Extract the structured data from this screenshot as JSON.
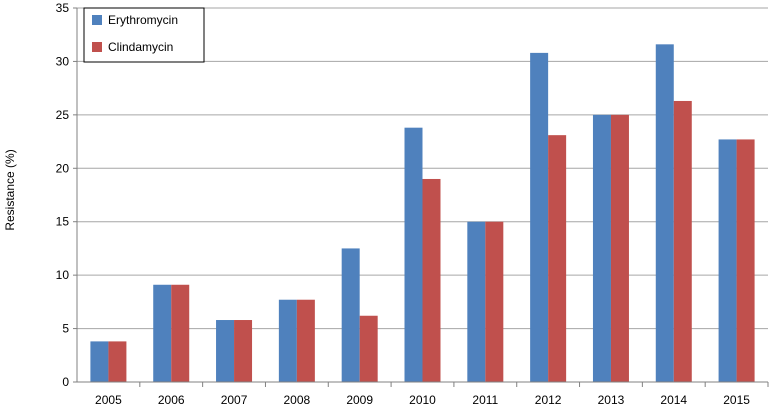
{
  "chart_data": {
    "type": "bar",
    "title": "",
    "xlabel": "",
    "ylabel": "Resistance (%)",
    "categories": [
      "2005",
      "2006",
      "2007",
      "2008",
      "2009",
      "2010",
      "2011",
      "2012",
      "2013",
      "2014",
      "2015"
    ],
    "series": [
      {
        "name": "Erythromycin",
        "color": "#4F81BD",
        "values": [
          3.8,
          9.1,
          5.8,
          7.7,
          12.5,
          23.8,
          15.0,
          30.8,
          25.0,
          31.6,
          22.7
        ]
      },
      {
        "name": "Clindamycin",
        "color": "#C0504D",
        "values": [
          3.8,
          9.1,
          5.8,
          7.7,
          6.2,
          19.0,
          15.0,
          23.1,
          25.0,
          26.3,
          22.7
        ]
      }
    ],
    "ylim": [
      0,
      35
    ],
    "yticks": [
      0,
      5,
      10,
      15,
      20,
      25,
      30,
      35
    ],
    "grid": true,
    "legend": "top-left"
  }
}
